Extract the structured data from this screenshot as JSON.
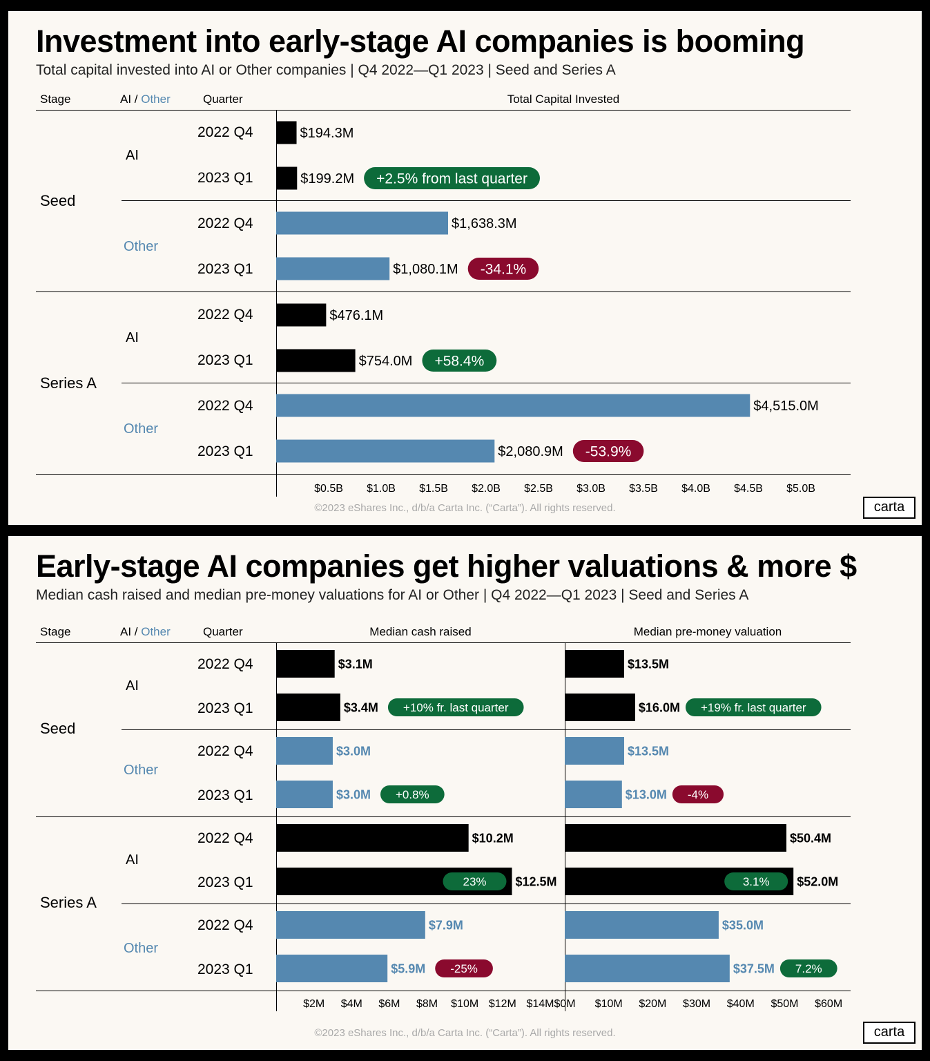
{
  "colors": {
    "ai": "#000000",
    "other": "#5588b0",
    "badge_up": "#0d6b3a",
    "badge_down": "#8a0a2e"
  },
  "chart1": {
    "title": "Investment into early-stage AI companies is booming",
    "subtitle": "Total capital invested into AI or Other companies |  Q4 2022—Q1 2023  | Seed and Series A",
    "col_stage": "Stage",
    "col_ai": "AI",
    "col_slash": " / ",
    "col_other": "Other",
    "col_quarter": "Quarter",
    "col_value": "Total Capital Invested",
    "footer": "©2023 eShares Inc., d/b/a Carta Inc. (“Carta”). All rights reserved.",
    "logo": "carta"
  },
  "chart2": {
    "title": "Early-stage AI companies get higher valuations & more $",
    "subtitle": "Median cash raised and median pre-money valuations for AI or Other |  Q4 2022—Q1 2023  | Seed and Series A",
    "col_stage": "Stage",
    "col_ai": "AI",
    "col_slash": " / ",
    "col_other": "Other",
    "col_quarter": "Quarter",
    "col_cash": "Median cash raised",
    "col_val": "Median pre-money valuation",
    "footer": "©2023 eShares Inc., d/b/a Carta Inc. (“Carta”). All rights reserved.",
    "logo": "carta"
  },
  "labels": {
    "stages": [
      "Seed",
      "Series A"
    ],
    "groups": [
      "AI",
      "Other"
    ],
    "quarters": [
      "2022 Q4",
      "2023 Q1"
    ]
  },
  "chart_data": [
    {
      "type": "bar",
      "title": "Investment into early-stage AI companies is booming",
      "xlabel": "Total Capital Invested",
      "unit": "$M",
      "xlim": [
        0,
        5500
      ],
      "ticks": [
        "$0.5B",
        "$1.0B",
        "$1.5B",
        "$2.0B",
        "$2.5B",
        "$3.0B",
        "$3.5B",
        "$4.0B",
        "$4.5B",
        "$5.0B"
      ],
      "tick_values": [
        500,
        1000,
        1500,
        2000,
        2500,
        3000,
        3500,
        4000,
        4500,
        5000
      ],
      "rows": [
        {
          "stage": "Seed",
          "group": "AI",
          "quarter": "2022 Q4",
          "value": 194.3,
          "label": "$194.3M"
        },
        {
          "stage": "Seed",
          "group": "AI",
          "quarter": "2023 Q1",
          "value": 199.2,
          "label": "$199.2M",
          "badge": "+2.5% from last quarter",
          "badge_dir": "up"
        },
        {
          "stage": "Seed",
          "group": "Other",
          "quarter": "2022 Q4",
          "value": 1638.3,
          "label": "$1,638.3M"
        },
        {
          "stage": "Seed",
          "group": "Other",
          "quarter": "2023 Q1",
          "value": 1080.1,
          "label": "$1,080.1M",
          "badge": "-34.1%",
          "badge_dir": "down"
        },
        {
          "stage": "Series A",
          "group": "AI",
          "quarter": "2022 Q4",
          "value": 476.1,
          "label": "$476.1M"
        },
        {
          "stage": "Series A",
          "group": "AI",
          "quarter": "2023 Q1",
          "value": 754.0,
          "label": "$754.0M",
          "badge": "+58.4%",
          "badge_dir": "up"
        },
        {
          "stage": "Series A",
          "group": "Other",
          "quarter": "2022 Q4",
          "value": 4515.0,
          "label": "$4,515.0M"
        },
        {
          "stage": "Series A",
          "group": "Other",
          "quarter": "2023 Q1",
          "value": 2080.9,
          "label": "$2,080.9M",
          "badge": "-53.9%",
          "badge_dir": "down"
        }
      ]
    },
    {
      "type": "bar",
      "title": "Early-stage AI companies get higher valuations & more $",
      "xlabel": "Median cash raised",
      "unit": "$M",
      "xlim": [
        0,
        15.3
      ],
      "ticks": [
        "$2M",
        "$4M",
        "$6M",
        "$8M",
        "$10M",
        "$12M",
        "$14M"
      ],
      "tick_values": [
        2,
        4,
        6,
        8,
        10,
        12,
        14
      ],
      "rows": [
        {
          "stage": "Seed",
          "group": "AI",
          "quarter": "2022 Q4",
          "value": 3.1,
          "label": "$3.1M"
        },
        {
          "stage": "Seed",
          "group": "AI",
          "quarter": "2023 Q1",
          "value": 3.4,
          "label": "$3.4M",
          "badge": "+10% fr. last quarter",
          "badge_dir": "up"
        },
        {
          "stage": "Seed",
          "group": "Other",
          "quarter": "2022 Q4",
          "value": 3.0,
          "label": "$3.0M"
        },
        {
          "stage": "Seed",
          "group": "Other",
          "quarter": "2023 Q1",
          "value": 3.0,
          "label": "$3.0M",
          "badge": "+0.8%",
          "badge_dir": "up"
        },
        {
          "stage": "Series A",
          "group": "AI",
          "quarter": "2022 Q4",
          "value": 10.2,
          "label": "$10.2M"
        },
        {
          "stage": "Series A",
          "group": "AI",
          "quarter": "2023 Q1",
          "value": 12.5,
          "label": "$12.5M",
          "badge": "23%",
          "badge_dir": "up",
          "badge_inside": true
        },
        {
          "stage": "Series A",
          "group": "Other",
          "quarter": "2022 Q4",
          "value": 7.9,
          "label": "$7.9M"
        },
        {
          "stage": "Series A",
          "group": "Other",
          "quarter": "2023 Q1",
          "value": 5.9,
          "label": "$5.9M",
          "badge": "-25%",
          "badge_dir": "down"
        }
      ]
    },
    {
      "type": "bar",
      "title": "Early-stage AI companies get higher valuations & more $",
      "xlabel": "Median pre-money valuation",
      "unit": "$M",
      "xlim": [
        0,
        65
      ],
      "ticks": [
        "$0M",
        "$10M",
        "$20M",
        "$30M",
        "$40M",
        "$50M",
        "$60M"
      ],
      "tick_values": [
        0,
        10,
        20,
        30,
        40,
        50,
        60
      ],
      "rows": [
        {
          "stage": "Seed",
          "group": "AI",
          "quarter": "2022 Q4",
          "value": 13.5,
          "label": "$13.5M"
        },
        {
          "stage": "Seed",
          "group": "AI",
          "quarter": "2023 Q1",
          "value": 16.0,
          "label": "$16.0M",
          "badge": "+19% fr. last quarter",
          "badge_dir": "up"
        },
        {
          "stage": "Seed",
          "group": "Other",
          "quarter": "2022 Q4",
          "value": 13.5,
          "label": "$13.5M"
        },
        {
          "stage": "Seed",
          "group": "Other",
          "quarter": "2023 Q1",
          "value": 13.0,
          "label": "$13.0M",
          "badge": "-4%",
          "badge_dir": "down"
        },
        {
          "stage": "Series A",
          "group": "AI",
          "quarter": "2022 Q4",
          "value": 50.4,
          "label": "$50.4M"
        },
        {
          "stage": "Series A",
          "group": "AI",
          "quarter": "2023 Q1",
          "value": 52.0,
          "label": "$52.0M",
          "badge": "3.1%",
          "badge_dir": "up",
          "badge_inside": true
        },
        {
          "stage": "Series A",
          "group": "Other",
          "quarter": "2022 Q4",
          "value": 35.0,
          "label": "$35.0M"
        },
        {
          "stage": "Series A",
          "group": "Other",
          "quarter": "2023 Q1",
          "value": 37.5,
          "label": "$37.5M",
          "badge": "7.2%",
          "badge_dir": "up"
        }
      ]
    }
  ]
}
